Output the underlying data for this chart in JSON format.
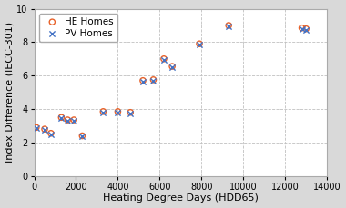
{
  "title": "",
  "xlabel": "Heating Degree Days (HDD65)",
  "ylabel": "Index Difference (IECC-301)",
  "xlim": [
    0,
    14000
  ],
  "ylim": [
    0,
    10
  ],
  "xticks": [
    0,
    2000,
    4000,
    6000,
    8000,
    10000,
    12000,
    14000
  ],
  "yticks": [
    0,
    2,
    4,
    6,
    8,
    10
  ],
  "he_x": [
    100,
    500,
    800,
    1300,
    1600,
    1900,
    2300,
    3300,
    4000,
    4600,
    5200,
    5700,
    6200,
    6600,
    7900,
    9300,
    12800,
    13000
  ],
  "he_y": [
    2.9,
    2.8,
    2.55,
    3.5,
    3.35,
    3.35,
    2.4,
    3.85,
    3.85,
    3.8,
    5.7,
    5.75,
    7.0,
    6.55,
    7.9,
    9.0,
    8.85,
    8.8
  ],
  "pv_x": [
    100,
    500,
    800,
    1300,
    1600,
    1900,
    2300,
    3300,
    4000,
    4600,
    5200,
    5700,
    6200,
    6600,
    7900,
    9300,
    12800,
    13000
  ],
  "pv_y": [
    2.85,
    2.75,
    2.5,
    3.45,
    3.3,
    3.3,
    2.35,
    3.8,
    3.8,
    3.75,
    5.65,
    5.7,
    6.95,
    6.5,
    7.85,
    8.95,
    8.8,
    8.75
  ],
  "he_color": "#e8622a",
  "pv_color": "#4472c4",
  "plot_bg": "#ffffff",
  "fig_bg": "#d9d9d9",
  "grid_color": "#c0c0c0",
  "label_fontsize": 8,
  "tick_fontsize": 7,
  "legend_fontsize": 7.5
}
